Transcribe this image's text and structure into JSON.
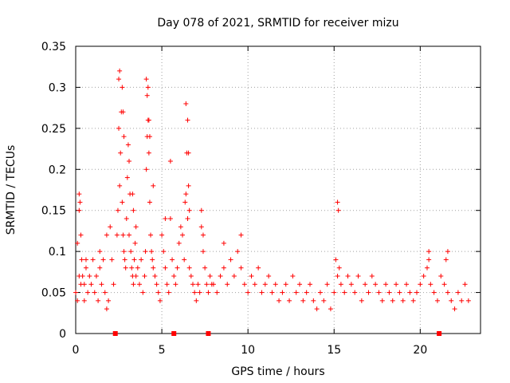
{
  "chart_data": {
    "type": "scatter",
    "title": "Day 078 of 2021, SRMTID for receiver mizu",
    "xlabel": "GPS time / hours",
    "ylabel": "SRMTID / TECUs",
    "xlim": [
      0,
      23.5
    ],
    "ylim": [
      0,
      0.35
    ],
    "x_ticks": [
      0,
      5,
      10,
      15,
      20
    ],
    "y_ticks": [
      0,
      0.05,
      0.1,
      0.15,
      0.2,
      0.25,
      0.3,
      0.35
    ],
    "x_tick_labels": [
      "0",
      "5",
      "10",
      "15",
      "20"
    ],
    "y_tick_labels": [
      "0",
      "0.05",
      "0.1",
      "0.15",
      "0.2",
      "0.25",
      "0.3",
      "0.35"
    ],
    "grid": true,
    "marker": "+",
    "color": "#ff0000",
    "series": [
      {
        "name": "SRMTID",
        "x": [
          0.0,
          0.1,
          0.1,
          0.2,
          0.2,
          0.3,
          0.3,
          0.35,
          0.4,
          0.5,
          0.5,
          0.6,
          0.7,
          0.8,
          0.9,
          1.0,
          1.1,
          1.2,
          1.3,
          1.4,
          1.5,
          1.6,
          1.7,
          1.8,
          1.9,
          2.0,
          2.1,
          2.2,
          2.4,
          2.45,
          2.5,
          2.55,
          2.6,
          2.65,
          2.7,
          2.75,
          2.8,
          2.85,
          2.9,
          2.95,
          3.0,
          3.05,
          3.1,
          3.15,
          3.2,
          3.25,
          3.3,
          3.35,
          3.4,
          3.45,
          3.5,
          3.6,
          3.7,
          3.8,
          3.9,
          4.0,
          4.05,
          4.1,
          4.15,
          4.2,
          4.25,
          4.3,
          4.35,
          4.4,
          4.45,
          4.5,
          4.6,
          4.7,
          4.8,
          4.9,
          5.0,
          5.1,
          5.2,
          5.3,
          5.4,
          5.5,
          5.6,
          5.7,
          5.8,
          5.9,
          6.0,
          6.1,
          6.2,
          6.3,
          6.35,
          6.4,
          6.45,
          6.5,
          6.55,
          6.6,
          6.7,
          6.8,
          6.9,
          7.0,
          7.1,
          7.2,
          7.3,
          7.4,
          7.5,
          7.6,
          7.7,
          7.8,
          7.9,
          8.0,
          8.2,
          8.4,
          8.6,
          8.8,
          9.0,
          9.2,
          9.4,
          9.6,
          9.8,
          10.0,
          10.2,
          10.4,
          10.6,
          10.8,
          11.0,
          11.2,
          11.4,
          11.6,
          11.8,
          12.0,
          12.2,
          12.4,
          12.6,
          12.8,
          13.0,
          13.2,
          13.4,
          13.6,
          13.8,
          14.0,
          14.2,
          14.4,
          14.6,
          14.8,
          15.0,
          15.1,
          15.2,
          15.3,
          15.4,
          15.6,
          15.8,
          16.0,
          16.2,
          16.4,
          16.6,
          16.8,
          17.0,
          17.2,
          17.4,
          17.6,
          17.8,
          18.0,
          18.2,
          18.4,
          18.6,
          18.8,
          19.0,
          19.2,
          19.4,
          19.6,
          19.8,
          20.0,
          20.2,
          20.4,
          20.5,
          20.6,
          20.8,
          21.0,
          21.2,
          21.4,
          21.6,
          21.8,
          22.0,
          22.2,
          22.4,
          22.6,
          22.8,
          0.2,
          0.25,
          0.6,
          1.4,
          1.8,
          2.5,
          2.55,
          2.7,
          2.75,
          2.8,
          3.1,
          3.3,
          3.35,
          3.5,
          4.1,
          4.15,
          4.2,
          4.25,
          4.3,
          4.5,
          5.2,
          5.5,
          6.4,
          6.5,
          6.55,
          6.6,
          7.3,
          7.4,
          8.6,
          9.6,
          15.2,
          15.25,
          20.5,
          21.5,
          21.6
        ],
        "y": [
          0.05,
          0.11,
          0.04,
          0.15,
          0.07,
          0.12,
          0.06,
          0.09,
          0.07,
          0.06,
          0.04,
          0.08,
          0.05,
          0.07,
          0.06,
          0.09,
          0.05,
          0.07,
          0.04,
          0.08,
          0.06,
          0.09,
          0.05,
          0.03,
          0.04,
          0.13,
          0.09,
          0.06,
          0.12,
          0.15,
          0.25,
          0.18,
          0.22,
          0.27,
          0.16,
          0.12,
          0.1,
          0.09,
          0.08,
          0.14,
          0.19,
          0.23,
          0.12,
          0.17,
          0.1,
          0.08,
          0.07,
          0.06,
          0.09,
          0.11,
          0.07,
          0.08,
          0.06,
          0.09,
          0.05,
          0.07,
          0.1,
          0.2,
          0.24,
          0.26,
          0.22,
          0.16,
          0.12,
          0.1,
          0.09,
          0.08,
          0.07,
          0.06,
          0.05,
          0.04,
          0.12,
          0.1,
          0.08,
          0.06,
          0.05,
          0.14,
          0.09,
          0.07,
          0.06,
          0.08,
          0.11,
          0.13,
          0.12,
          0.09,
          0.16,
          0.17,
          0.22,
          0.14,
          0.18,
          0.08,
          0.07,
          0.06,
          0.05,
          0.04,
          0.06,
          0.05,
          0.13,
          0.1,
          0.08,
          0.06,
          0.05,
          0.07,
          0.06,
          0.06,
          0.05,
          0.07,
          0.08,
          0.06,
          0.09,
          0.07,
          0.1,
          0.08,
          0.06,
          0.05,
          0.07,
          0.06,
          0.08,
          0.05,
          0.06,
          0.07,
          0.05,
          0.06,
          0.04,
          0.05,
          0.06,
          0.04,
          0.07,
          0.05,
          0.06,
          0.04,
          0.05,
          0.06,
          0.04,
          0.03,
          0.05,
          0.04,
          0.06,
          0.03,
          0.05,
          0.09,
          0.07,
          0.08,
          0.06,
          0.05,
          0.07,
          0.06,
          0.05,
          0.07,
          0.04,
          0.06,
          0.05,
          0.07,
          0.06,
          0.05,
          0.04,
          0.06,
          0.05,
          0.04,
          0.06,
          0.05,
          0.04,
          0.06,
          0.05,
          0.04,
          0.05,
          0.06,
          0.07,
          0.08,
          0.09,
          0.06,
          0.05,
          0.04,
          0.07,
          0.06,
          0.05,
          0.04,
          0.03,
          0.05,
          0.04,
          0.06,
          0.04,
          0.17,
          0.16,
          0.09,
          0.1,
          0.12,
          0.31,
          0.32,
          0.3,
          0.27,
          0.24,
          0.21,
          0.17,
          0.15,
          0.13,
          0.31,
          0.29,
          0.3,
          0.26,
          0.24,
          0.18,
          0.14,
          0.21,
          0.28,
          0.26,
          0.22,
          0.15,
          0.15,
          0.12,
          0.11,
          0.12,
          0.16,
          0.15,
          0.1,
          0.09,
          0.1
        ]
      }
    ],
    "gap_markers_x": [
      2.3,
      5.7,
      7.7,
      21.1
    ],
    "gap_markers_y": [
      0,
      0,
      0,
      0
    ]
  }
}
